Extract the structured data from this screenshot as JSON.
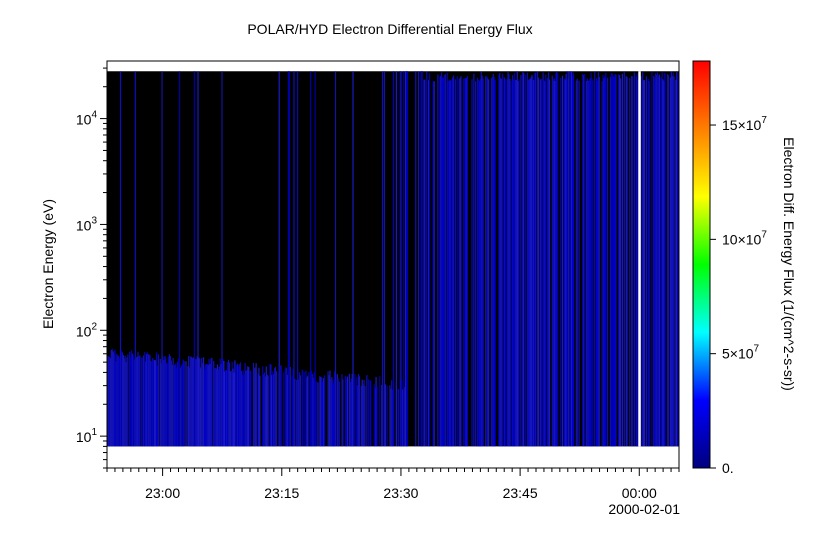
{
  "chart_data": {
    "type": "heatmap",
    "title": "POLAR/HYD  Electron Differential Energy Flux",
    "xlabel": "",
    "ylabel": "Electron Energy (eV)",
    "colorbar_label": "Electron Diff. Energy Flux (1/(cm^2-s-sr))",
    "x_tick_labels": [
      "23:00",
      "23:15",
      "23:30",
      "23:45",
      "00:00"
    ],
    "x_ticks_minutes": [
      0,
      15,
      30,
      45,
      60
    ],
    "x_range_minutes": [
      -7,
      65
    ],
    "date_label": "2000-02-01",
    "y_scale": "log",
    "y_range": [
      5,
      35000
    ],
    "y_tick_labels": [
      {
        "base": "10",
        "exp": "1",
        "value": 10
      },
      {
        "base": "10",
        "exp": "2",
        "value": 100
      },
      {
        "base": "10",
        "exp": "3",
        "value": 1000
      },
      {
        "base": "10",
        "exp": "4",
        "value": 10000
      }
    ],
    "data_energy_range_ev": [
      8,
      28000
    ],
    "low_energy_band_top_ev": 60,
    "colorbar_ticks": [
      {
        "label": "0.",
        "value": 0
      },
      {
        "label": "5×10",
        "exp": "7",
        "value": 50000000
      },
      {
        "label": "10×10",
        "exp": "7",
        "value": 100000000
      },
      {
        "label": "15×10",
        "exp": "7",
        "value": 150000000
      }
    ],
    "colorbar_range": [
      0,
      178000000
    ],
    "colormap": [
      "#00007f",
      "#0000ff",
      "#00ffff",
      "#00ff00",
      "#ffff00",
      "#ff7f00",
      "#ff0000"
    ],
    "background_color": "#000000",
    "data_gap_minute": 60,
    "flux_typical": 8000000
  }
}
